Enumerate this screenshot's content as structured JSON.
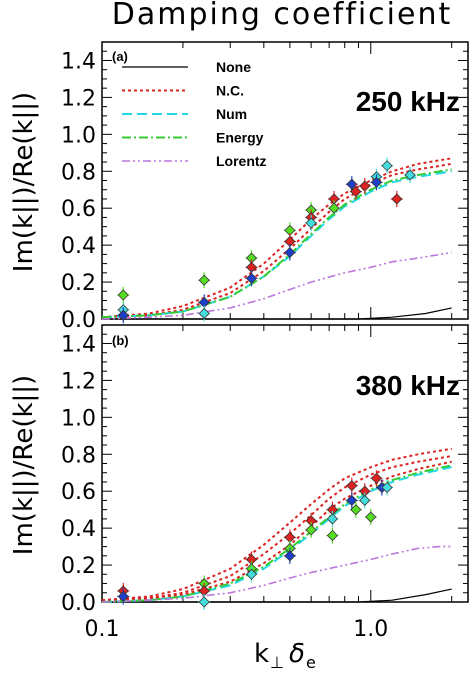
{
  "figure": {
    "title": "Damping coefficient",
    "xlabel_main": "k",
    "xlabel_sub": "⊥",
    "xlabel_delta": "δ",
    "xlabel_delta_sub": "e",
    "ylabel": "Im(k||)/Re(k||)"
  },
  "colors": {
    "none": "#000000",
    "nc": "#dd2222",
    "num": "#22d6e6",
    "energy": "#33cc33",
    "lorentz": "#bb77dd",
    "marker_blue": "#1e3fc8",
    "marker_red": "#dd2222",
    "marker_green": "#55dd22",
    "marker_cyan": "#44dddd"
  },
  "legend": [
    {
      "key": "none",
      "label": "None"
    },
    {
      "key": "nc",
      "label": "N.C."
    },
    {
      "key": "num",
      "label": "Num"
    },
    {
      "key": "energy",
      "label": "Energy"
    },
    {
      "key": "lorentz",
      "label": "Lorentz"
    }
  ],
  "chart_data": [
    {
      "type": "line",
      "panel": "(a)",
      "frequency": "250 kHz",
      "title": "Damping coefficient",
      "xscale": "log",
      "xlim": [
        0.1,
        2.3
      ],
      "ylim": [
        0.0,
        1.5
      ],
      "xticks": [
        {
          "v": 0.1,
          "label": "0.1"
        },
        {
          "v": 1.0,
          "label": "1.0"
        }
      ],
      "yticks": [
        0.0,
        0.2,
        0.4,
        0.6,
        0.8,
        1.0,
        1.2,
        1.4
      ],
      "ytick_labels": [
        "0.0",
        "0.2",
        "0.4",
        "0.6",
        "0.8",
        "1.0",
        "1.2",
        "1.4"
      ],
      "series": [
        {
          "name": "None",
          "key": "none",
          "x": [
            0.1,
            0.3,
            0.6,
            0.9,
            1.2,
            1.6,
            2.0
          ],
          "y": [
            0.0,
            0.0,
            0.0,
            0.0,
            0.01,
            0.03,
            0.06
          ]
        },
        {
          "name": "N.C.",
          "key": "nc",
          "x": [
            0.1,
            0.15,
            0.2,
            0.3,
            0.4,
            0.5,
            0.6,
            0.7,
            0.8,
            1.0,
            1.2,
            1.5,
            2.0
          ],
          "y": [
            0.01,
            0.03,
            0.07,
            0.17,
            0.3,
            0.43,
            0.54,
            0.62,
            0.68,
            0.75,
            0.8,
            0.84,
            0.87
          ]
        },
        {
          "name": "N.C.",
          "key": "nc",
          "x": [
            0.1,
            0.15,
            0.2,
            0.3,
            0.4,
            0.5,
            0.6,
            0.7,
            0.8,
            1.0,
            1.2,
            1.5,
            2.0
          ],
          "y": [
            0.01,
            0.02,
            0.05,
            0.14,
            0.26,
            0.38,
            0.49,
            0.58,
            0.65,
            0.73,
            0.78,
            0.81,
            0.84
          ]
        },
        {
          "name": "Num",
          "key": "num",
          "x": [
            0.1,
            0.15,
            0.2,
            0.3,
            0.4,
            0.5,
            0.6,
            0.7,
            0.8,
            1.0,
            1.2,
            1.5,
            2.0
          ],
          "y": [
            0.01,
            0.02,
            0.04,
            0.12,
            0.23,
            0.34,
            0.45,
            0.54,
            0.61,
            0.69,
            0.74,
            0.77,
            0.8
          ]
        },
        {
          "name": "Energy",
          "key": "energy",
          "x": [
            0.1,
            0.15,
            0.2,
            0.3,
            0.4,
            0.5,
            0.6,
            0.7,
            0.8,
            1.0,
            1.2,
            1.5,
            2.0
          ],
          "y": [
            0.01,
            0.02,
            0.04,
            0.12,
            0.23,
            0.35,
            0.46,
            0.55,
            0.62,
            0.7,
            0.75,
            0.78,
            0.81
          ]
        },
        {
          "name": "Lorentz",
          "key": "lorentz",
          "x": [
            0.1,
            0.15,
            0.2,
            0.3,
            0.4,
            0.5,
            0.6,
            0.8,
            1.0,
            1.2,
            1.5,
            2.0
          ],
          "y": [
            0.0,
            0.01,
            0.02,
            0.06,
            0.11,
            0.16,
            0.2,
            0.25,
            0.28,
            0.31,
            0.33,
            0.36
          ]
        }
      ],
      "points": [
        {
          "x": 0.12,
          "y": 0.05,
          "c": "marker_cyan"
        },
        {
          "x": 0.12,
          "y": 0.02,
          "c": "marker_blue"
        },
        {
          "x": 0.12,
          "y": 0.13,
          "c": "marker_green"
        },
        {
          "x": 0.24,
          "y": 0.21,
          "c": "marker_green"
        },
        {
          "x": 0.24,
          "y": 0.09,
          "c": "marker_blue"
        },
        {
          "x": 0.24,
          "y": 0.03,
          "c": "marker_cyan"
        },
        {
          "x": 0.36,
          "y": 0.33,
          "c": "marker_green"
        },
        {
          "x": 0.36,
          "y": 0.28,
          "c": "marker_red"
        },
        {
          "x": 0.36,
          "y": 0.22,
          "c": "marker_blue"
        },
        {
          "x": 0.5,
          "y": 0.48,
          "c": "marker_green"
        },
        {
          "x": 0.5,
          "y": 0.42,
          "c": "marker_red"
        },
        {
          "x": 0.5,
          "y": 0.36,
          "c": "marker_blue"
        },
        {
          "x": 0.6,
          "y": 0.59,
          "c": "marker_green"
        },
        {
          "x": 0.6,
          "y": 0.55,
          "c": "marker_red"
        },
        {
          "x": 0.6,
          "y": 0.52,
          "c": "marker_cyan"
        },
        {
          "x": 0.73,
          "y": 0.65,
          "c": "marker_red"
        },
        {
          "x": 0.73,
          "y": 0.6,
          "c": "marker_green"
        },
        {
          "x": 0.85,
          "y": 0.73,
          "c": "marker_blue"
        },
        {
          "x": 0.88,
          "y": 0.69,
          "c": "marker_red"
        },
        {
          "x": 0.95,
          "y": 0.72,
          "c": "marker_red"
        },
        {
          "x": 1.05,
          "y": 0.77,
          "c": "marker_cyan"
        },
        {
          "x": 1.05,
          "y": 0.74,
          "c": "marker_blue"
        },
        {
          "x": 1.15,
          "y": 0.83,
          "c": "marker_cyan"
        },
        {
          "x": 1.25,
          "y": 0.65,
          "c": "marker_red"
        },
        {
          "x": 1.4,
          "y": 0.78,
          "c": "marker_cyan"
        }
      ]
    },
    {
      "type": "line",
      "panel": "(b)",
      "frequency": "380 kHz",
      "xscale": "log",
      "xlim": [
        0.1,
        2.3
      ],
      "ylim": [
        0.0,
        1.5
      ],
      "xticks": [
        {
          "v": 0.1,
          "label": "0.1"
        },
        {
          "v": 1.0,
          "label": "1.0"
        }
      ],
      "yticks": [
        0.0,
        0.2,
        0.4,
        0.6,
        0.8,
        1.0,
        1.2,
        1.4
      ],
      "ytick_labels": [
        "0.0",
        "0.2",
        "0.4",
        "0.6",
        "0.8",
        "1.0",
        "1.2",
        "1.4"
      ],
      "series": [
        {
          "name": "None",
          "key": "none",
          "x": [
            0.1,
            0.3,
            0.6,
            0.9,
            1.2,
            1.6,
            2.0
          ],
          "y": [
            0.0,
            0.0,
            0.0,
            0.0,
            0.01,
            0.04,
            0.07
          ]
        },
        {
          "name": "N.C.",
          "key": "nc",
          "x": [
            0.1,
            0.15,
            0.2,
            0.3,
            0.4,
            0.5,
            0.6,
            0.7,
            0.8,
            1.0,
            1.2,
            1.5,
            2.0
          ],
          "y": [
            0.01,
            0.03,
            0.07,
            0.18,
            0.31,
            0.43,
            0.53,
            0.61,
            0.67,
            0.73,
            0.77,
            0.8,
            0.83
          ]
        },
        {
          "name": "N.C.",
          "key": "nc",
          "x": [
            0.1,
            0.15,
            0.2,
            0.3,
            0.4,
            0.5,
            0.6,
            0.7,
            0.8,
            1.0,
            1.2,
            1.5,
            2.0
          ],
          "y": [
            0.01,
            0.02,
            0.05,
            0.14,
            0.26,
            0.37,
            0.47,
            0.56,
            0.62,
            0.69,
            0.73,
            0.76,
            0.79
          ]
        },
        {
          "name": "N.C.",
          "key": "nc",
          "x": [
            0.1,
            0.15,
            0.2,
            0.3,
            0.4,
            0.5,
            0.6,
            0.7,
            0.8,
            1.0,
            1.2,
            1.5,
            2.0
          ],
          "y": [
            0.01,
            0.02,
            0.04,
            0.11,
            0.21,
            0.31,
            0.41,
            0.5,
            0.56,
            0.63,
            0.68,
            0.72,
            0.76
          ]
        },
        {
          "name": "Num",
          "key": "num",
          "x": [
            0.1,
            0.15,
            0.2,
            0.3,
            0.4,
            0.5,
            0.6,
            0.7,
            0.8,
            1.0,
            1.2,
            1.5,
            2.0
          ],
          "y": [
            0.0,
            0.01,
            0.03,
            0.09,
            0.18,
            0.28,
            0.37,
            0.45,
            0.52,
            0.6,
            0.65,
            0.69,
            0.73
          ]
        },
        {
          "name": "Energy",
          "key": "energy",
          "x": [
            0.1,
            0.15,
            0.2,
            0.3,
            0.4,
            0.5,
            0.6,
            0.7,
            0.8,
            1.0,
            1.2,
            1.5,
            2.0
          ],
          "y": [
            0.0,
            0.01,
            0.03,
            0.1,
            0.19,
            0.29,
            0.38,
            0.46,
            0.53,
            0.61,
            0.66,
            0.7,
            0.74
          ]
        },
        {
          "name": "Lorentz",
          "key": "lorentz",
          "x": [
            0.1,
            0.15,
            0.2,
            0.3,
            0.4,
            0.5,
            0.6,
            0.8,
            1.0,
            1.2,
            1.5,
            1.8,
            2.0
          ],
          "y": [
            0.0,
            0.01,
            0.02,
            0.05,
            0.09,
            0.13,
            0.16,
            0.2,
            0.23,
            0.26,
            0.29,
            0.3,
            0.3
          ]
        }
      ],
      "points": [
        {
          "x": 0.12,
          "y": 0.06,
          "c": "marker_red"
        },
        {
          "x": 0.12,
          "y": 0.03,
          "c": "marker_blue"
        },
        {
          "x": 0.24,
          "y": 0.1,
          "c": "marker_green"
        },
        {
          "x": 0.24,
          "y": 0.06,
          "c": "marker_red"
        },
        {
          "x": 0.24,
          "y": 0.0,
          "c": "marker_cyan"
        },
        {
          "x": 0.36,
          "y": 0.23,
          "c": "marker_red"
        },
        {
          "x": 0.36,
          "y": 0.18,
          "c": "marker_green"
        },
        {
          "x": 0.36,
          "y": 0.15,
          "c": "marker_cyan"
        },
        {
          "x": 0.5,
          "y": 0.35,
          "c": "marker_red"
        },
        {
          "x": 0.5,
          "y": 0.29,
          "c": "marker_green"
        },
        {
          "x": 0.5,
          "y": 0.25,
          "c": "marker_blue"
        },
        {
          "x": 0.6,
          "y": 0.44,
          "c": "marker_red"
        },
        {
          "x": 0.6,
          "y": 0.39,
          "c": "marker_green"
        },
        {
          "x": 0.72,
          "y": 0.5,
          "c": "marker_red"
        },
        {
          "x": 0.72,
          "y": 0.45,
          "c": "marker_cyan"
        },
        {
          "x": 0.72,
          "y": 0.36,
          "c": "marker_green"
        },
        {
          "x": 0.85,
          "y": 0.63,
          "c": "marker_red"
        },
        {
          "x": 0.85,
          "y": 0.55,
          "c": "marker_blue"
        },
        {
          "x": 0.88,
          "y": 0.5,
          "c": "marker_green"
        },
        {
          "x": 0.95,
          "y": 0.6,
          "c": "marker_red"
        },
        {
          "x": 0.95,
          "y": 0.55,
          "c": "marker_cyan"
        },
        {
          "x": 1.0,
          "y": 0.46,
          "c": "marker_green"
        },
        {
          "x": 1.05,
          "y": 0.67,
          "c": "marker_red"
        },
        {
          "x": 1.1,
          "y": 0.62,
          "c": "marker_blue"
        },
        {
          "x": 1.15,
          "y": 0.62,
          "c": "marker_cyan"
        }
      ]
    }
  ]
}
